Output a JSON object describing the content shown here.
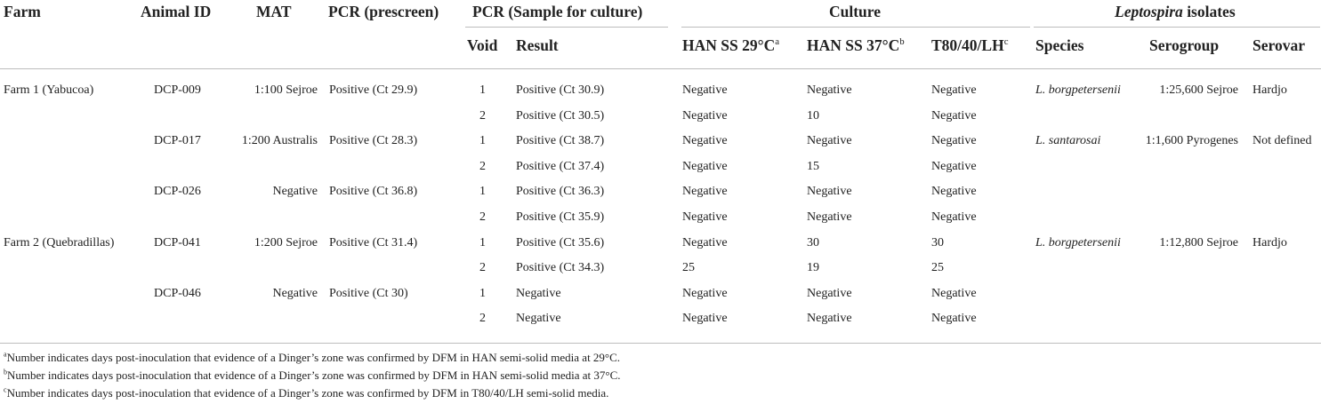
{
  "headers": {
    "farm": "Farm",
    "animal_id": "Animal ID",
    "mat": "MAT",
    "pcr_prescreen": "PCR (prescreen)",
    "pcr_culture_group": "PCR (Sample for culture)",
    "void": "Void",
    "result": "Result",
    "culture_group": "Culture",
    "han29": "HAN SS 29°C",
    "han29_note": "a",
    "han37": "HAN SS 37°C",
    "han37_note": "b",
    "t80": "T80/40/LH",
    "t80_note": "c",
    "isolates_group_italic": "Leptospira",
    "isolates_group_rest": " isolates",
    "species": "Species",
    "serogroup": "Serogroup",
    "serovar": "Serovar"
  },
  "rows": [
    {
      "farm": "Farm 1 (Yabucoa)",
      "animal": "DCP-009",
      "mat": "1:100 Sejroe",
      "prescreen": "Positive (Ct 29.9)",
      "void": "1",
      "result": "Positive (Ct 30.9)",
      "han29": "Negative",
      "han37": "Negative",
      "t80": "Negative",
      "species": "L. borgpetersenii",
      "serogroup": "1:25,600 Sejroe",
      "serovar": "Hardjo"
    },
    {
      "farm": "",
      "animal": "",
      "mat": "",
      "prescreen": "",
      "void": "2",
      "result": "Positive (Ct 30.5)",
      "han29": "Negative",
      "han37": "10",
      "t80": "Negative",
      "species": "",
      "serogroup": "",
      "serovar": ""
    },
    {
      "farm": "",
      "animal": "DCP-017",
      "mat": "1:200 Australis",
      "prescreen": "Positive (Ct 28.3)",
      "void": "1",
      "result": "Positive (Ct 38.7)",
      "han29": "Negative",
      "han37": "Negative",
      "t80": "Negative",
      "species": "L. santarosai",
      "serogroup": "1:1,600 Pyrogenes",
      "serovar": "Not defined"
    },
    {
      "farm": "",
      "animal": "",
      "mat": "",
      "prescreen": "",
      "void": "2",
      "result": "Positive (Ct 37.4)",
      "han29": "Negative",
      "han37": "15",
      "t80": "Negative",
      "species": "",
      "serogroup": "",
      "serovar": ""
    },
    {
      "farm": "",
      "animal": "DCP-026",
      "mat": "Negative",
      "prescreen": "Positive (Ct 36.8)",
      "void": "1",
      "result": "Positive (Ct 36.3)",
      "han29": "Negative",
      "han37": "Negative",
      "t80": "Negative",
      "species": "",
      "serogroup": "",
      "serovar": ""
    },
    {
      "farm": "",
      "animal": "",
      "mat": "",
      "prescreen": "",
      "void": "2",
      "result": "Positive (Ct 35.9)",
      "han29": "Negative",
      "han37": "Negative",
      "t80": "Negative",
      "species": "",
      "serogroup": "",
      "serovar": ""
    },
    {
      "farm": "Farm 2 (Quebradillas)",
      "animal": "DCP-041",
      "mat": "1:200 Sejroe",
      "prescreen": "Positive (Ct 31.4)",
      "void": "1",
      "result": "Positive (Ct 35.6)",
      "han29": "Negative",
      "han37": "30",
      "t80": "30",
      "species": "L. borgpetersenii",
      "serogroup": "1:12,800 Sejroe",
      "serovar": "Hardjo"
    },
    {
      "farm": "",
      "animal": "",
      "mat": "",
      "prescreen": "",
      "void": "2",
      "result": "Positive (Ct 34.3)",
      "han29": "25",
      "han37": "19",
      "t80": "25",
      "species": "",
      "serogroup": "",
      "serovar": ""
    },
    {
      "farm": "",
      "animal": "DCP-046",
      "mat": "Negative",
      "prescreen": "Positive (Ct 30)",
      "void": "1",
      "result": "Negative",
      "han29": "Negative",
      "han37": "Negative",
      "t80": "Negative",
      "species": "",
      "serogroup": "",
      "serovar": ""
    },
    {
      "farm": "",
      "animal": "",
      "mat": "",
      "prescreen": "",
      "void": "2",
      "result": "Negative",
      "han29": "Negative",
      "han37": "Negative",
      "t80": "Negative",
      "species": "",
      "serogroup": "",
      "serovar": ""
    }
  ],
  "footnotes": [
    {
      "mark": "a",
      "text": "Number indicates days post-inoculation that evidence of a Dinger’s zone was confirmed by DFM in HAN semi-solid media at 29°C."
    },
    {
      "mark": "b",
      "text": "Number indicates days post-inoculation that evidence of a Dinger’s zone was confirmed by DFM in HAN semi-solid media at 37°C."
    },
    {
      "mark": "c",
      "text": "Number indicates days post-inoculation that evidence of a Dinger’s zone was confirmed by DFM in T80/40/LH semi-solid media."
    }
  ]
}
